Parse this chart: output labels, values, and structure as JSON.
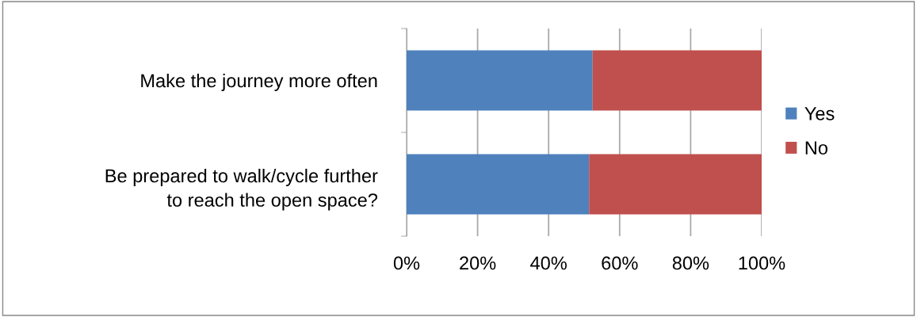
{
  "chart_data": {
    "type": "bar",
    "orientation": "horizontal",
    "stacked": true,
    "categories": [
      "Make the journey more often",
      "Be prepared to walk/cycle further\nto reach the open space?"
    ],
    "series": [
      {
        "name": "Yes",
        "color": "#4f81bd",
        "values": [
          52.4,
          51.4
        ]
      },
      {
        "name": "No",
        "color": "#c0504d",
        "values": [
          47.6,
          48.6
        ]
      }
    ],
    "xlim": [
      0,
      100
    ],
    "xticks": [
      {
        "value": 0,
        "label": "0%"
      },
      {
        "value": 20,
        "label": "20%"
      },
      {
        "value": 40,
        "label": "40%"
      },
      {
        "value": 60,
        "label": "60%"
      },
      {
        "value": 80,
        "label": "80%"
      },
      {
        "value": 100,
        "label": "100%"
      }
    ],
    "grid": "x",
    "legend": "right"
  }
}
